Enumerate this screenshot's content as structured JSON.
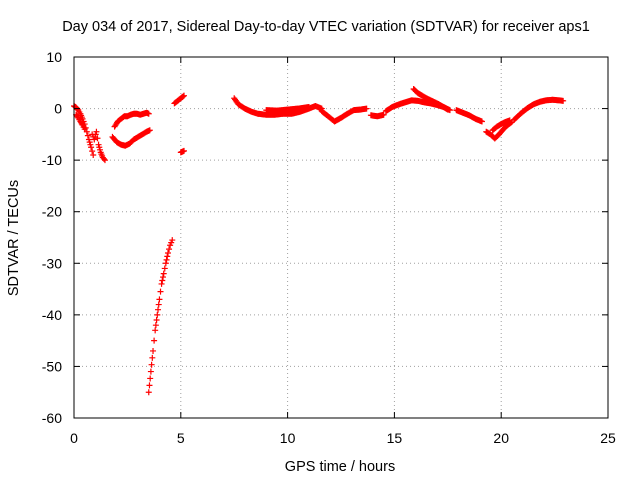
{
  "chart_data": {
    "type": "scatter",
    "title": "Day 034 of 2017, Sidereal Day-to-day VTEC variation (SDTVAR) for receiver aps1",
    "xlabel": "GPS time / hours",
    "ylabel": "SDTVAR / TECUs",
    "xlim": [
      0,
      25
    ],
    "ylim": [
      -60,
      10
    ],
    "xticks": [
      0,
      5,
      10,
      15,
      20,
      25
    ],
    "yticks": [
      -60,
      -50,
      -40,
      -30,
      -20,
      -10,
      0,
      10
    ],
    "grid": true,
    "marker": "+",
    "colors": {
      "marker": "#ff0000",
      "grid": "#a0a0a0",
      "axis": "#000000"
    },
    "series": [
      {
        "name": "SDTVAR",
        "segments": [
          [
            [
              0.0,
              0.5
            ],
            [
              0.1,
              0.2
            ],
            [
              0.2,
              -0.3
            ],
            [
              0.3,
              -1
            ],
            [
              0.4,
              -2
            ],
            [
              0.5,
              -3
            ],
            [
              0.6,
              -4.5
            ],
            [
              0.7,
              -6
            ],
            [
              0.8,
              -7.5
            ],
            [
              0.9,
              -9
            ]
          ],
          [
            [
              0.1,
              -1.2
            ],
            [
              0.2,
              -1.8
            ],
            [
              0.3,
              -2.5
            ],
            [
              0.4,
              -3.2
            ],
            [
              0.5,
              -4
            ]
          ],
          [
            [
              0.85,
              -5
            ],
            [
              0.95,
              -6
            ],
            [
              1.05,
              -4.5
            ],
            [
              1.15,
              -7
            ],
            [
              1.25,
              -8.5
            ],
            [
              1.35,
              -9.5
            ],
            [
              1.45,
              -10
            ]
          ],
          [
            [
              1.9,
              -3.5
            ],
            [
              2.05,
              -2.5
            ],
            [
              2.2,
              -2
            ],
            [
              2.35,
              -1.5
            ],
            [
              2.5,
              -1.5
            ],
            [
              2.65,
              -1.2
            ],
            [
              2.8,
              -1
            ],
            [
              2.95,
              -1
            ],
            [
              3.1,
              -1.2
            ],
            [
              3.25,
              -1
            ],
            [
              3.4,
              -0.8
            ],
            [
              3.5,
              -1
            ]
          ],
          [
            [
              1.8,
              -5.5
            ],
            [
              2.0,
              -6.5
            ],
            [
              2.2,
              -7
            ],
            [
              2.4,
              -7.2
            ],
            [
              2.6,
              -6.8
            ],
            [
              2.8,
              -6
            ],
            [
              3.0,
              -5.5
            ],
            [
              3.2,
              -5
            ],
            [
              3.4,
              -4.5
            ],
            [
              3.55,
              -4.2
            ]
          ],
          [
            [
              3.5,
              -55
            ],
            [
              3.6,
              -51
            ],
            [
              3.7,
              -47
            ],
            [
              3.8,
              -43
            ],
            [
              3.9,
              -40
            ],
            [
              4.0,
              -37
            ],
            [
              4.1,
              -34
            ],
            [
              4.2,
              -32
            ],
            [
              4.3,
              -30
            ],
            [
              4.4,
              -28
            ],
            [
              4.5,
              -26.5
            ],
            [
              4.6,
              -25.5
            ]
          ],
          [
            [
              4.7,
              1
            ],
            [
              4.85,
              1.5
            ],
            [
              5.0,
              2
            ],
            [
              5.15,
              2.5
            ]
          ],
          [
            [
              5.0,
              -8.5
            ],
            [
              5.15,
              -8.2
            ]
          ],
          [
            [
              7.5,
              2
            ],
            [
              7.7,
              0.8
            ],
            [
              8.0,
              0
            ],
            [
              8.3,
              -0.6
            ],
            [
              8.6,
              -1
            ],
            [
              9.0,
              -1.2
            ],
            [
              9.4,
              -1.2
            ],
            [
              9.8,
              -1
            ],
            [
              10.2,
              -1
            ],
            [
              10.6,
              -0.6
            ],
            [
              11.0,
              0
            ],
            [
              11.3,
              0.5
            ],
            [
              11.6,
              0
            ]
          ],
          [
            [
              9.0,
              -0.3
            ],
            [
              9.5,
              -0.4
            ],
            [
              10.0,
              -0.2
            ],
            [
              10.5,
              0
            ],
            [
              11.0,
              0.3
            ]
          ],
          [
            [
              11.6,
              -0.5
            ],
            [
              11.9,
              -1.5
            ],
            [
              12.2,
              -2.5
            ],
            [
              12.5,
              -1.8
            ],
            [
              12.8,
              -1
            ],
            [
              13.1,
              -0.3
            ],
            [
              13.4,
              -0.2
            ],
            [
              13.7,
              0
            ]
          ],
          [
            [
              13.9,
              -1.3
            ],
            [
              14.2,
              -1.5
            ],
            [
              14.5,
              -1.2
            ]
          ],
          [
            [
              14.6,
              -0.5
            ],
            [
              14.9,
              0.3
            ],
            [
              15.2,
              0.8
            ],
            [
              15.5,
              1.2
            ],
            [
              15.8,
              1.6
            ],
            [
              16.1,
              1.5
            ],
            [
              16.4,
              1.2
            ],
            [
              16.7,
              1
            ],
            [
              17.0,
              0.7
            ],
            [
              17.3,
              0.3
            ],
            [
              17.6,
              -0.3
            ]
          ],
          [
            [
              15.9,
              3.8
            ],
            [
              16.1,
              3
            ],
            [
              16.3,
              2.5
            ],
            [
              16.5,
              2
            ],
            [
              16.7,
              1.6
            ],
            [
              16.9,
              1.2
            ],
            [
              17.1,
              0.8
            ],
            [
              17.3,
              0.3
            ],
            [
              17.5,
              -0.2
            ]
          ],
          [
            [
              17.9,
              -0.3
            ],
            [
              18.2,
              -0.8
            ],
            [
              18.5,
              -1.3
            ],
            [
              18.8,
              -2
            ],
            [
              19.1,
              -2.5
            ]
          ],
          [
            [
              19.3,
              -4.5
            ],
            [
              19.5,
              -5
            ],
            [
              19.7,
              -5.8
            ],
            [
              19.9,
              -5
            ],
            [
              20.1,
              -4
            ],
            [
              20.3,
              -3.2
            ],
            [
              20.5,
              -2.6
            ]
          ],
          [
            [
              19.6,
              -4.2
            ],
            [
              19.8,
              -3.5
            ],
            [
              20.0,
              -3
            ],
            [
              20.2,
              -2.6
            ],
            [
              20.4,
              -2.3
            ]
          ],
          [
            [
              20.6,
              -2.2
            ],
            [
              20.9,
              -1
            ],
            [
              21.2,
              0
            ],
            [
              21.5,
              0.8
            ],
            [
              21.8,
              1.3
            ],
            [
              22.1,
              1.6
            ],
            [
              22.4,
              1.7
            ],
            [
              22.7,
              1.6
            ],
            [
              22.9,
              1.5
            ]
          ]
        ]
      }
    ]
  }
}
